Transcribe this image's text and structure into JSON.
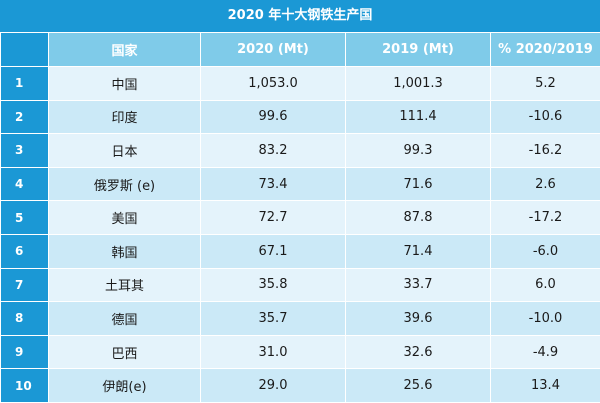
{
  "header": {
    "title": "2020 年十大钢铁生产国"
  },
  "table": {
    "columns": [
      "国家",
      "2020 (Mt)",
      "2019 (Mt)",
      "% 2020/2019"
    ],
    "rows": [
      [
        "1",
        "中国",
        "1,053.0",
        "1,001.3",
        "5.2"
      ],
      [
        "2",
        "印度",
        "99.6",
        "111.4",
        "-10.6"
      ],
      [
        "3",
        "日本",
        "83.2",
        "99.3",
        "-16.2"
      ],
      [
        "4",
        "俄罗斯 (e)",
        "73.4",
        "71.6",
        "2.6"
      ],
      [
        "5",
        "美国",
        "72.7",
        "87.8",
        "-17.2"
      ],
      [
        "6",
        "韩国",
        "67.1",
        "71.4",
        "-6.0"
      ],
      [
        "7",
        "土耳其",
        "35.8",
        "33.7",
        "6.0"
      ],
      [
        "8",
        "德国",
        "35.7",
        "39.6",
        "-10.0"
      ],
      [
        "9",
        "巴西",
        "31.0",
        "32.6",
        "-4.9"
      ],
      [
        "10",
        "伊朗(e)",
        "29.0",
        "25.6",
        "13.4"
      ]
    ]
  }
}
